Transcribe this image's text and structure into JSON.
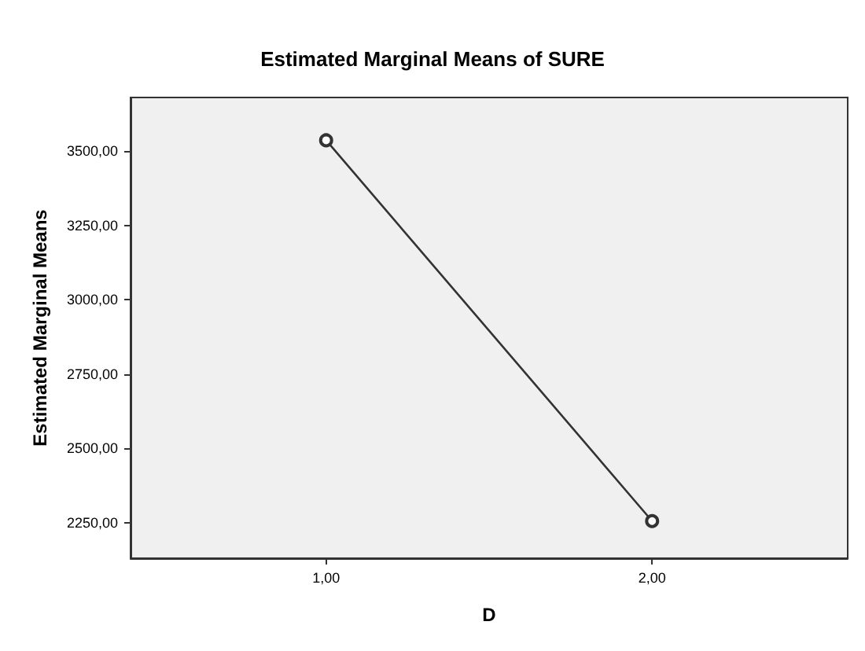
{
  "chart_data": {
    "type": "line",
    "title": "Estimated Marginal Means of SURE",
    "xlabel": "D",
    "ylabel": "Estimated Marginal Means",
    "x": [
      1,
      2
    ],
    "values": [
      3536,
      2255
    ],
    "color": "#333333",
    "marker": "circle",
    "line_style": "solid",
    "grid": false,
    "xlim": [
      0.4,
      2.6
    ],
    "xticks": [
      {
        "value": 1,
        "label": "1,00"
      },
      {
        "value": 2,
        "label": "2,00"
      }
    ],
    "ylim": [
      2130,
      3680
    ],
    "yticks": [
      {
        "value": 2250,
        "label": "2250,00"
      },
      {
        "value": 2500,
        "label": "2500,00"
      },
      {
        "value": 2750,
        "label": "2750,00"
      },
      {
        "value": 3000,
        "label": "3000,00"
      },
      {
        "value": 3250,
        "label": "3250,00"
      },
      {
        "value": 3500,
        "label": "3500,00"
      }
    ]
  }
}
